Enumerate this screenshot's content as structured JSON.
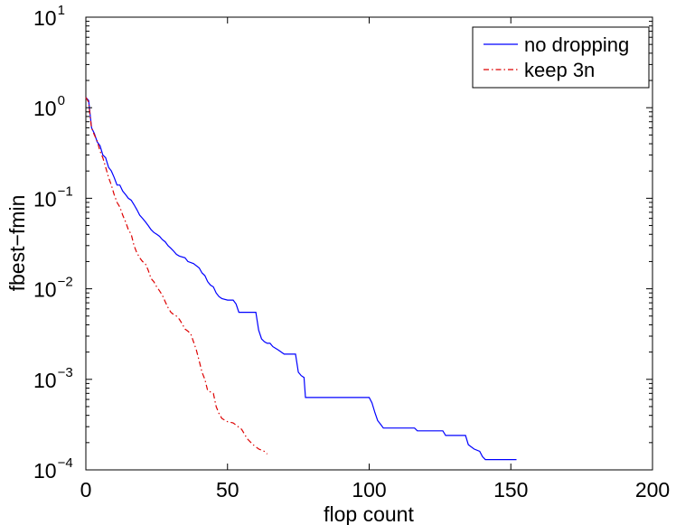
{
  "chart_data": {
    "type": "line",
    "xlabel": "flop count",
    "ylabel": "fbest−fmin",
    "xlim": [
      0,
      200
    ],
    "ylim": [
      0.0001,
      10
    ],
    "yscale": "log",
    "grid": false,
    "legend_position": "top-right",
    "x_ticks": [
      {
        "value": 0,
        "label": "0"
      },
      {
        "value": 50,
        "label": "50"
      },
      {
        "value": 100,
        "label": "100"
      },
      {
        "value": 150,
        "label": "150"
      },
      {
        "value": 200,
        "label": "200"
      }
    ],
    "y_ticks": [
      {
        "value": 0.0001,
        "base": "10",
        "exp": "−4"
      },
      {
        "value": 0.001,
        "base": "10",
        "exp": "−3"
      },
      {
        "value": 0.01,
        "base": "10",
        "exp": "−2"
      },
      {
        "value": 0.1,
        "base": "10",
        "exp": "−1"
      },
      {
        "value": 1,
        "base": "10",
        "exp": "0"
      },
      {
        "value": 10,
        "base": "10",
        "exp": "1"
      }
    ],
    "series": [
      {
        "name": "no dropping",
        "color": "#0000ff",
        "style": "solid",
        "points": [
          [
            0,
            1.3
          ],
          [
            1,
            1.2
          ],
          [
            1.5,
            0.85
          ],
          [
            2,
            0.6
          ],
          [
            3,
            0.52
          ],
          [
            4,
            0.42
          ],
          [
            5,
            0.38
          ],
          [
            6,
            0.3
          ],
          [
            7,
            0.28
          ],
          [
            8,
            0.22
          ],
          [
            9,
            0.2
          ],
          [
            10,
            0.17
          ],
          [
            11,
            0.14
          ],
          [
            12,
            0.14
          ],
          [
            13,
            0.12
          ],
          [
            14,
            0.11
          ],
          [
            15,
            0.1
          ],
          [
            16,
            0.095
          ],
          [
            17,
            0.085
          ],
          [
            18,
            0.075
          ],
          [
            19,
            0.065
          ],
          [
            20,
            0.06
          ],
          [
            21,
            0.055
          ],
          [
            22,
            0.05
          ],
          [
            23,
            0.045
          ],
          [
            24,
            0.042
          ],
          [
            25,
            0.04
          ],
          [
            26,
            0.038
          ],
          [
            27,
            0.035
          ],
          [
            28,
            0.033
          ],
          [
            29,
            0.03
          ],
          [
            30,
            0.028
          ],
          [
            31,
            0.026
          ],
          [
            32,
            0.024
          ],
          [
            33,
            0.023
          ],
          [
            35,
            0.022
          ],
          [
            36,
            0.02
          ],
          [
            38,
            0.019
          ],
          [
            40,
            0.017
          ],
          [
            41,
            0.015
          ],
          [
            42,
            0.014
          ],
          [
            43,
            0.012
          ],
          [
            44,
            0.011
          ],
          [
            45,
            0.0105
          ],
          [
            46,
            0.009
          ],
          [
            47,
            0.0082
          ],
          [
            48,
            0.0078
          ],
          [
            50,
            0.0075
          ],
          [
            52,
            0.0075
          ],
          [
            53,
            0.0068
          ],
          [
            54,
            0.0055
          ],
          [
            55,
            0.0055
          ],
          [
            57,
            0.0055
          ],
          [
            60,
            0.0055
          ],
          [
            61,
            0.0035
          ],
          [
            62,
            0.0028
          ],
          [
            63,
            0.0026
          ],
          [
            64,
            0.0025
          ],
          [
            65,
            0.0025
          ],
          [
            66,
            0.0023
          ],
          [
            67,
            0.0022
          ],
          [
            68,
            0.0021
          ],
          [
            70,
            0.0019
          ],
          [
            72,
            0.0019
          ],
          [
            74,
            0.0019
          ],
          [
            75,
            0.0012
          ],
          [
            76,
            0.0011
          ],
          [
            77,
            0.00105
          ],
          [
            77.5,
            0.00063
          ],
          [
            90,
            0.00063
          ],
          [
            100,
            0.00063
          ],
          [
            101,
            0.00055
          ],
          [
            102,
            0.00043
          ],
          [
            103,
            0.00035
          ],
          [
            104,
            0.00032
          ],
          [
            105,
            0.00029
          ],
          [
            110,
            0.00029
          ],
          [
            116,
            0.00029
          ],
          [
            117,
            0.00027
          ],
          [
            126,
            0.00027
          ],
          [
            127,
            0.00024
          ],
          [
            134,
            0.00024
          ],
          [
            135,
            0.00019
          ],
          [
            137,
            0.00017
          ],
          [
            139,
            0.00016
          ],
          [
            140,
            0.00014
          ],
          [
            141,
            0.00013
          ],
          [
            146,
            0.00013
          ],
          [
            152,
            0.00013
          ]
        ]
      },
      {
        "name": "keep 3n",
        "color": "#dd0000",
        "style": "dash-dot",
        "points": [
          [
            0,
            1.3
          ],
          [
            1,
            1.15
          ],
          [
            1.5,
            0.8
          ],
          [
            2,
            0.6
          ],
          [
            3,
            0.5
          ],
          [
            4,
            0.43
          ],
          [
            5,
            0.33
          ],
          [
            6,
            0.28
          ],
          [
            7,
            0.22
          ],
          [
            8,
            0.17
          ],
          [
            9,
            0.14
          ],
          [
            10,
            0.11
          ],
          [
            11,
            0.09
          ],
          [
            12,
            0.08
          ],
          [
            13,
            0.065
          ],
          [
            14,
            0.055
          ],
          [
            15,
            0.045
          ],
          [
            16,
            0.04
          ],
          [
            17,
            0.03
          ],
          [
            18,
            0.025
          ],
          [
            19,
            0.022
          ],
          [
            20,
            0.02
          ],
          [
            21,
            0.019
          ],
          [
            22,
            0.016
          ],
          [
            23,
            0.013
          ],
          [
            24,
            0.012
          ],
          [
            25,
            0.0105
          ],
          [
            26,
            0.0095
          ],
          [
            27,
            0.0085
          ],
          [
            28,
            0.0072
          ],
          [
            29,
            0.0062
          ],
          [
            30,
            0.0055
          ],
          [
            31,
            0.0052
          ],
          [
            32,
            0.005
          ],
          [
            33,
            0.0046
          ],
          [
            34,
            0.0041
          ],
          [
            35,
            0.0036
          ],
          [
            36,
            0.0034
          ],
          [
            37,
            0.0032
          ],
          [
            38,
            0.0026
          ],
          [
            39,
            0.0021
          ],
          [
            40,
            0.0016
          ],
          [
            41,
            0.0012
          ],
          [
            42,
            0.001
          ],
          [
            43,
            0.00075
          ],
          [
            45,
            0.0007
          ],
          [
            46,
            0.0005
          ],
          [
            47,
            0.00042
          ],
          [
            48,
            0.00037
          ],
          [
            50,
            0.00034
          ],
          [
            52,
            0.00033
          ],
          [
            55,
            0.00028
          ],
          [
            57,
            0.00022
          ],
          [
            59,
            0.00019
          ],
          [
            61,
            0.00017
          ],
          [
            63,
            0.00016
          ],
          [
            64,
            0.00015
          ]
        ]
      }
    ]
  }
}
